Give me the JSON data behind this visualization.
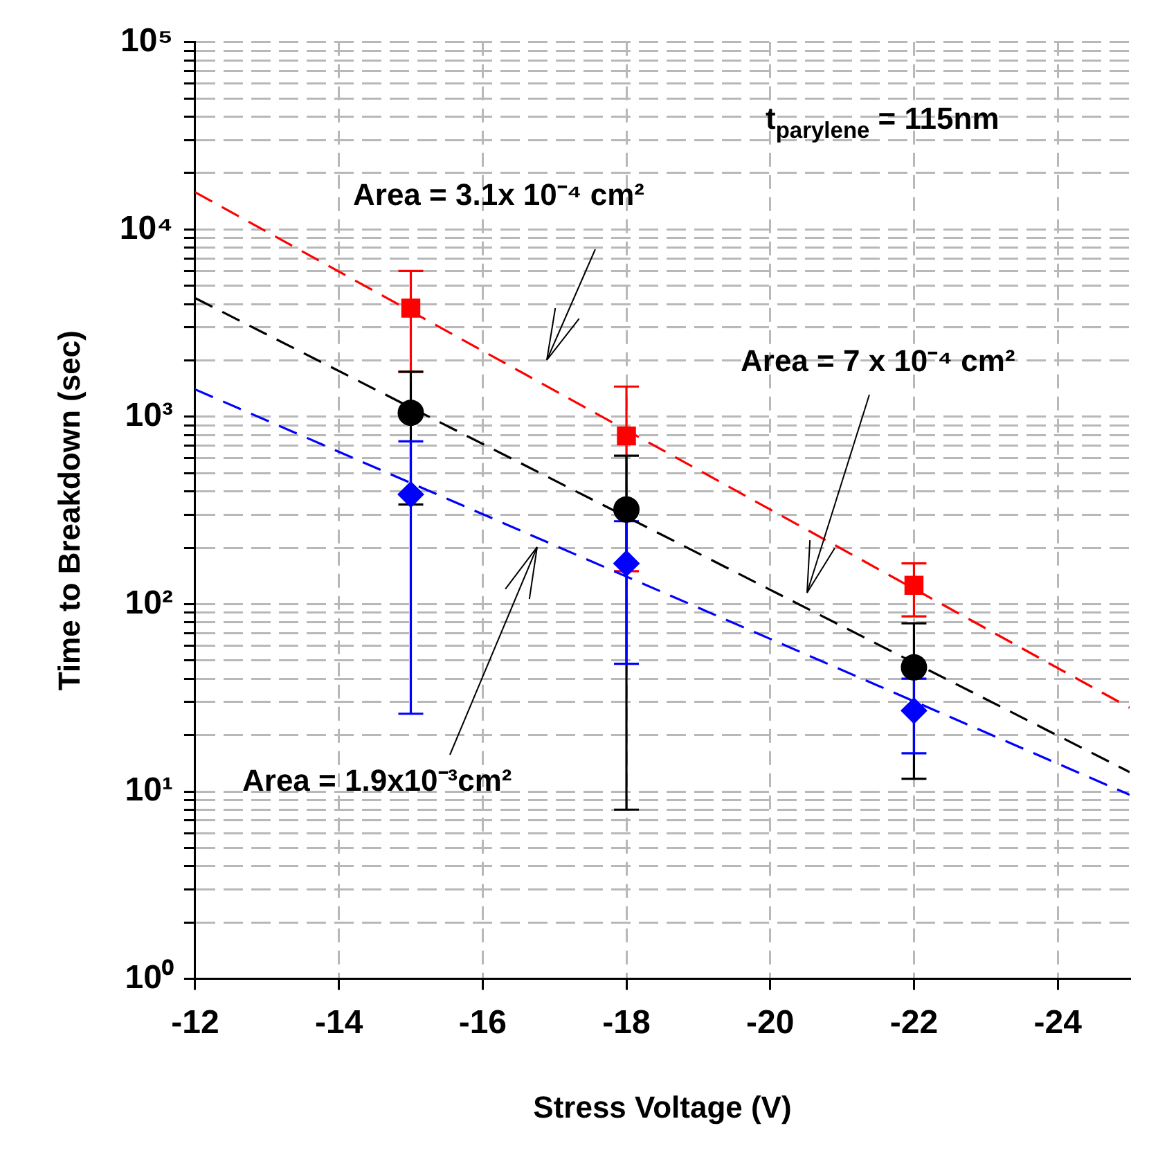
{
  "chart_data": {
    "type": "scatter",
    "xlabel": "Stress Voltage (V)",
    "ylabel": "Time to Breakdown (sec)",
    "xlim": [
      -12,
      -25
    ],
    "xticks": [
      -12,
      -14,
      -16,
      -18,
      -20,
      -22,
      -24
    ],
    "ylim": [
      1,
      100000
    ],
    "yticks": [
      {
        "value": 1,
        "label": "10⁰"
      },
      {
        "value": 2,
        "label": null
      },
      {
        "value": 3,
        "label": null
      },
      {
        "value": 4,
        "label": null
      },
      {
        "value": 5,
        "label": null
      },
      {
        "value": 6,
        "label": null
      },
      {
        "value": 7,
        "label": null
      },
      {
        "value": 8,
        "label": null
      },
      {
        "value": 9,
        "label": null
      },
      {
        "value": 10,
        "label": "10¹"
      },
      {
        "value": 20,
        "label": null
      },
      {
        "value": 30,
        "label": null
      },
      {
        "value": 40,
        "label": null
      },
      {
        "value": 50,
        "label": null
      },
      {
        "value": 60,
        "label": null
      },
      {
        "value": 70,
        "label": null
      },
      {
        "value": 80,
        "label": null
      },
      {
        "value": 90,
        "label": null
      },
      {
        "value": 100,
        "label": "10²"
      },
      {
        "value": 200,
        "label": null
      },
      {
        "value": 300,
        "label": null
      },
      {
        "value": 400,
        "label": null
      },
      {
        "value": 500,
        "label": null
      },
      {
        "value": 600,
        "label": null
      },
      {
        "value": 700,
        "label": null
      },
      {
        "value": 800,
        "label": null
      },
      {
        "value": 900,
        "label": null
      },
      {
        "value": 1000,
        "label": "10³"
      },
      {
        "value": 2000,
        "label": null
      },
      {
        "value": 3000,
        "label": null
      },
      {
        "value": 4000,
        "label": null
      },
      {
        "value": 5000,
        "label": null
      },
      {
        "value": 6000,
        "label": null
      },
      {
        "value": 7000,
        "label": null
      },
      {
        "value": 8000,
        "label": null
      },
      {
        "value": 9000,
        "label": null
      },
      {
        "value": 10000,
        "label": "10⁴"
      },
      {
        "value": 20000,
        "label": null
      },
      {
        "value": 30000,
        "label": null
      },
      {
        "value": 40000,
        "label": null
      },
      {
        "value": 50000,
        "label": null
      },
      {
        "value": 60000,
        "label": null
      },
      {
        "value": 70000,
        "label": null
      },
      {
        "value": 80000,
        "label": null
      },
      {
        "value": 90000,
        "label": null
      },
      {
        "value": 100000,
        "label": "10⁵"
      }
    ],
    "log": "y",
    "grid": true,
    "series": [
      {
        "type": "scatter",
        "color": "#ff0000",
        "marker": "square",
        "x": [
          -15,
          -18,
          -22
        ],
        "values": [
          3800,
          790,
          126
        ],
        "errors": [
          [
            1740,
            6000
          ],
          [
            150,
            1450
          ],
          [
            86,
            165
          ]
        ]
      },
      {
        "type": "scatter",
        "color": "#000000",
        "marker": "circle",
        "x": [
          -15,
          -18,
          -22
        ],
        "values": [
          1050,
          320,
          46
        ],
        "errors": [
          [
            340,
            1740
          ],
          [
            8,
            620
          ],
          [
            11.7,
            79
          ]
        ]
      },
      {
        "type": "scatter",
        "color": "#0000ff",
        "marker": "diamond",
        "x": [
          -15,
          -18,
          -22
        ],
        "values": [
          385,
          165,
          27
        ],
        "errors": [
          [
            26,
            740
          ],
          [
            48,
            277
          ],
          [
            16,
            40
          ]
        ]
      },
      {
        "type": "line",
        "color": "#ff0000",
        "line_style": "dashed",
        "marker": "none",
        "x": [
          -12,
          -25
        ],
        "values": [
          15800,
          28
        ]
      },
      {
        "type": "line",
        "color": "#000000",
        "line_style": "dashed",
        "marker": "none",
        "x": [
          -12,
          -25
        ],
        "values": [
          4300,
          12.7
        ]
      },
      {
        "type": "line",
        "color": "#0000ff",
        "line_style": "dashed",
        "marker": "none",
        "x": [
          -12,
          -25
        ],
        "values": [
          1400,
          9.6
        ]
      }
    ],
    "annotations": [
      "Area = 3.1x 10⁻⁴ cm²",
      "Area = 7 x 10⁻⁴ cm²",
      "Area = 1.9x10⁻³cm²",
      "t$_{parylene}$ = 115nm"
    ]
  }
}
